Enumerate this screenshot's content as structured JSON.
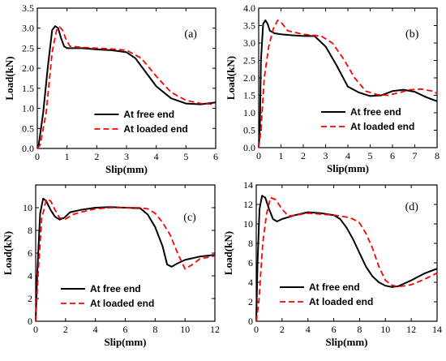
{
  "chart_data": [
    {
      "type": "line",
      "panel_label": "(a)",
      "xlabel": "Slip(mm)",
      "ylabel": "Load(kN)",
      "xlim": [
        0,
        6
      ],
      "ylim": [
        0,
        3.5
      ],
      "xticks": [
        "0",
        "1",
        "2",
        "3",
        "4",
        "5",
        "6"
      ],
      "yticks": [
        "0.0",
        "0.5",
        "1.0",
        "1.5",
        "2.0",
        "2.5",
        "3.0",
        "3.5"
      ],
      "legend": "bottom-right",
      "series": [
        {
          "name": "At free end",
          "color": "#000000",
          "dash": "solid",
          "x": [
            0,
            0.05,
            0.2,
            0.35,
            0.5,
            0.6,
            0.7,
            0.8,
            0.9,
            1.0,
            1.5,
            2.0,
            2.5,
            3.0,
            3.3,
            3.6,
            4.0,
            4.5,
            5.0,
            5.5,
            6.0
          ],
          "y": [
            0,
            0.1,
            0.9,
            2.0,
            2.95,
            3.05,
            3.0,
            2.75,
            2.55,
            2.5,
            2.5,
            2.47,
            2.45,
            2.4,
            2.25,
            1.95,
            1.55,
            1.25,
            1.12,
            1.1,
            1.15
          ]
        },
        {
          "name": "At loaded end",
          "color": "#ff0000",
          "dash": "dashed",
          "x": [
            0,
            0.1,
            0.3,
            0.5,
            0.65,
            0.75,
            0.85,
            0.95,
            1.1,
            1.5,
            2.0,
            2.5,
            3.0,
            3.5,
            4.0,
            4.5,
            5.0,
            5.5,
            6.0
          ],
          "y": [
            0,
            0.1,
            0.9,
            2.4,
            2.95,
            3.03,
            2.95,
            2.75,
            2.55,
            2.52,
            2.5,
            2.48,
            2.45,
            2.25,
            1.8,
            1.4,
            1.2,
            1.12,
            1.1
          ]
        }
      ]
    },
    {
      "type": "line",
      "panel_label": "(b)",
      "xlabel": "Slip(mm)",
      "ylabel": "Load(kN)",
      "xlim": [
        0,
        8
      ],
      "ylim": [
        0,
        4
      ],
      "xticks": [
        "0",
        "1",
        "2",
        "3",
        "4",
        "5",
        "6",
        "7",
        "8"
      ],
      "yticks": [
        "0.0",
        "0.5",
        "1.0",
        "1.5",
        "2.0",
        "2.5",
        "3.0",
        "3.5",
        "4.0"
      ],
      "legend": "bottom-right",
      "series": [
        {
          "name": "At free end",
          "color": "#000000",
          "dash": "solid",
          "x": [
            0,
            0.05,
            0.1,
            0.2,
            0.3,
            0.4,
            0.5,
            0.7,
            1.0,
            1.5,
            2.0,
            2.5,
            3.0,
            3.5,
            4.0,
            4.5,
            5.0,
            5.5,
            6.0,
            6.5,
            7.0,
            7.5,
            8.0
          ],
          "y": [
            0,
            0.5,
            2.5,
            3.55,
            3.65,
            3.55,
            3.35,
            3.28,
            3.25,
            3.22,
            3.2,
            3.2,
            2.9,
            2.35,
            1.75,
            1.58,
            1.48,
            1.5,
            1.62,
            1.66,
            1.6,
            1.45,
            1.33
          ]
        },
        {
          "name": "At loaded end",
          "color": "#ff0000",
          "dash": "dashed",
          "x": [
            0,
            0.1,
            0.25,
            0.45,
            0.65,
            0.85,
            1.0,
            1.3,
            2.0,
            2.8,
            3.3,
            3.8,
            4.3,
            4.8,
            5.3,
            5.8,
            6.3,
            6.8,
            7.3,
            7.8,
            8.0
          ],
          "y": [
            0,
            0.5,
            2.0,
            2.9,
            3.4,
            3.65,
            3.6,
            3.35,
            3.25,
            3.2,
            3.0,
            2.55,
            2.0,
            1.62,
            1.52,
            1.5,
            1.58,
            1.66,
            1.68,
            1.62,
            1.55
          ]
        }
      ]
    },
    {
      "type": "line",
      "panel_label": "(c)",
      "xlabel": "Slip(mm)",
      "ylabel": "Load(kN)",
      "xlim": [
        0,
        12
      ],
      "ylim": [
        0,
        12
      ],
      "xticks": [
        "0",
        "2",
        "4",
        "6",
        "8",
        "10",
        "12"
      ],
      "yticks": [
        "0",
        "2",
        "4",
        "6",
        "8",
        "10"
      ],
      "legend": "bottom-left",
      "series": [
        {
          "name": "At free end",
          "color": "#000000",
          "dash": "solid",
          "x": [
            0,
            0.1,
            0.3,
            0.5,
            0.7,
            1.0,
            1.3,
            1.6,
            1.9,
            2.3,
            3.0,
            4.0,
            5.0,
            6.0,
            7.0,
            7.5,
            8.0,
            8.5,
            8.8,
            9.1,
            9.5,
            10.0,
            11.0,
            12.0
          ],
          "y": [
            0,
            4.0,
            9.5,
            10.8,
            10.6,
            9.8,
            9.2,
            8.95,
            9.1,
            9.6,
            9.8,
            10.0,
            10.05,
            10.0,
            9.95,
            9.4,
            8.3,
            6.6,
            5.0,
            4.8,
            5.1,
            5.4,
            5.7,
            5.85
          ]
        },
        {
          "name": "At loaded end",
          "color": "#ff0000",
          "dash": "dashed",
          "x": [
            0,
            0.15,
            0.4,
            0.7,
            1.0,
            1.3,
            1.6,
            2.0,
            2.5,
            3.0,
            4.0,
            5.0,
            6.0,
            7.0,
            7.5,
            8.0,
            8.5,
            9.0,
            9.5,
            10.0,
            10.5,
            11.0,
            12.0
          ],
          "y": [
            0,
            4.0,
            9.0,
            10.7,
            10.6,
            9.8,
            9.1,
            9.0,
            9.4,
            9.6,
            9.9,
            10.0,
            10.0,
            10.0,
            9.9,
            9.5,
            8.7,
            7.6,
            6.0,
            4.6,
            5.0,
            5.5,
            5.75
          ]
        }
      ]
    },
    {
      "type": "line",
      "panel_label": "(d)",
      "xlabel": "Slip(mm)",
      "ylabel": "Load(kN)",
      "xlim": [
        0,
        14
      ],
      "ylim": [
        0,
        14
      ],
      "xticks": [
        "0",
        "2",
        "4",
        "6",
        "8",
        "10",
        "12",
        "14"
      ],
      "yticks": [
        "0",
        "2",
        "4",
        "6",
        "8",
        "10",
        "12",
        "14"
      ],
      "legend": "bottom-left",
      "series": [
        {
          "name": "At free end",
          "color": "#000000",
          "dash": "solid",
          "x": [
            0,
            0.1,
            0.25,
            0.45,
            0.7,
            1.0,
            1.3,
            1.6,
            2.0,
            3.0,
            4.0,
            5.0,
            6.0,
            6.5,
            7.0,
            7.5,
            8.0,
            8.5,
            9.0,
            9.5,
            10.0,
            10.5,
            11.0,
            12.0,
            13.0,
            14.0
          ],
          "y": [
            0,
            6.0,
            11.5,
            12.9,
            12.7,
            11.5,
            10.5,
            10.25,
            10.5,
            10.9,
            11.2,
            11.1,
            10.9,
            10.5,
            9.6,
            8.4,
            7.0,
            5.6,
            4.6,
            4.0,
            3.65,
            3.52,
            3.6,
            4.2,
            4.9,
            5.4
          ]
        },
        {
          "name": "At loaded end",
          "color": "#ff0000",
          "dash": "dashed",
          "x": [
            0,
            0.2,
            0.5,
            0.8,
            1.1,
            1.5,
            2.0,
            2.5,
            3.0,
            4.0,
            5.0,
            6.0,
            7.0,
            7.5,
            8.0,
            8.5,
            9.0,
            9.5,
            10.0,
            10.5,
            11.0,
            12.0,
            13.0,
            14.0
          ],
          "y": [
            0,
            2.0,
            8.0,
            11.0,
            12.7,
            12.5,
            11.5,
            10.8,
            10.9,
            11.1,
            11.0,
            10.9,
            10.7,
            10.5,
            10.1,
            9.0,
            7.5,
            5.6,
            4.2,
            3.7,
            3.55,
            3.75,
            4.3,
            4.95
          ]
        }
      ]
    }
  ]
}
